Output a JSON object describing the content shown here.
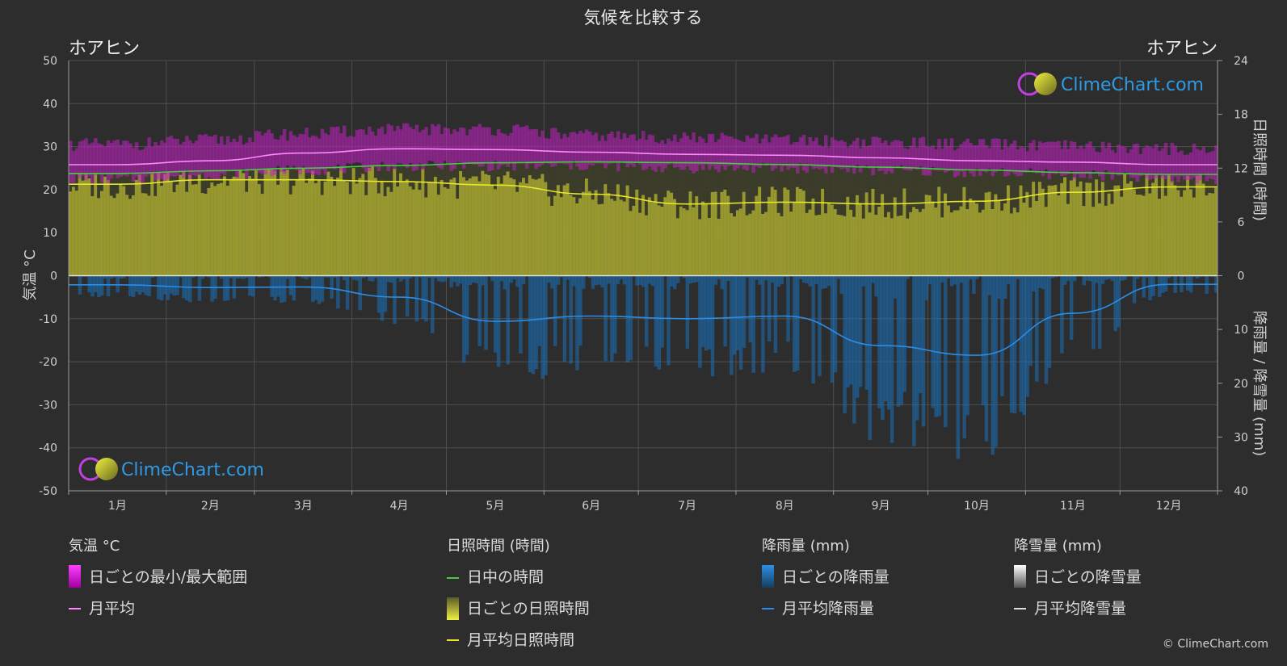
{
  "title": "気候を比較する",
  "location_left": "ホアヒン",
  "location_right": "ホアヒン",
  "axis_left_label": "気温 °C",
  "axis_right_top_label": "日照時間 (時間)",
  "axis_right_bottom_label": "降雨量 / 降雪量 (mm)",
  "brand": "ClimeChart.com",
  "copyright": "© ClimeChart.com",
  "chart_data": {
    "type": "line",
    "months": [
      "1月",
      "2月",
      "3月",
      "4月",
      "5月",
      "6月",
      "7月",
      "8月",
      "9月",
      "10月",
      "11月",
      "12月"
    ],
    "month_days": [
      31,
      28,
      31,
      30,
      31,
      30,
      31,
      31,
      30,
      31,
      30,
      31
    ],
    "temperature_axis": {
      "ylim": [
        -50,
        50
      ],
      "ticks": [
        50,
        40,
        30,
        20,
        10,
        0,
        -10,
        -20,
        -30,
        -40,
        -50
      ]
    },
    "sunshine_axis": {
      "ylim": [
        0,
        24
      ],
      "ticks": [
        24,
        18,
        12,
        6,
        0
      ]
    },
    "precip_axis": {
      "ylim": [
        0,
        40
      ],
      "ticks": [
        0,
        10,
        20,
        30,
        40
      ],
      "inverted": true
    },
    "series": [
      {
        "name": "月平均",
        "kind": "temperature_mean",
        "color": "#ff88ff",
        "values": [
          25.8,
          26.7,
          28.5,
          29.5,
          29.3,
          28.7,
          28.2,
          28.0,
          27.4,
          26.7,
          26.4,
          25.8
        ]
      },
      {
        "name": "日ごとの最小/最大範囲",
        "kind": "temperature_range",
        "color": "#d020d0",
        "min": [
          22.5,
          23.5,
          24.5,
          25.5,
          25.5,
          25.5,
          25.0,
          25.0,
          24.5,
          24.0,
          23.5,
          22.5
        ],
        "max": [
          30.5,
          31.5,
          33.0,
          34.0,
          34.0,
          32.5,
          32.0,
          31.5,
          31.0,
          30.5,
          30.0,
          29.5
        ]
      },
      {
        "name": "日中の時間",
        "kind": "daylight",
        "color": "#44cc44",
        "values": [
          11.4,
          11.7,
          12.0,
          12.3,
          12.6,
          12.7,
          12.6,
          12.4,
          12.1,
          11.8,
          11.5,
          11.3
        ]
      },
      {
        "name": "月平均日照時間",
        "kind": "sunshine_mean",
        "color": "#e6e62a",
        "values": [
          10.2,
          10.7,
          10.7,
          10.5,
          10.1,
          9.1,
          8.0,
          8.2,
          8.0,
          8.3,
          9.3,
          9.9
        ]
      },
      {
        "name": "日ごとの日照時間",
        "kind": "sunshine_daily",
        "color": "#a8a830"
      },
      {
        "name": "月平均降雨量",
        "kind": "rain_mean",
        "color": "#2a8ee8",
        "values": [
          1.7,
          2.2,
          2.1,
          4.0,
          8.5,
          7.5,
          8.0,
          7.5,
          13.0,
          14.8,
          7.0,
          1.6
        ]
      },
      {
        "name": "日ごとの降雨量",
        "kind": "rain_daily",
        "color": "#1a6fb8"
      },
      {
        "name": "日ごとの降雪量",
        "kind": "snow_daily",
        "color": "#cccccc"
      },
      {
        "name": "月平均降雪量",
        "kind": "snow_mean",
        "color": "#dddddd",
        "values": [
          0,
          0,
          0,
          0,
          0,
          0,
          0,
          0,
          0,
          0,
          0,
          0
        ]
      }
    ]
  },
  "legend": {
    "temp": {
      "header": "気温 °C",
      "range": "日ごとの最小/最大範囲",
      "mean": "月平均"
    },
    "sun": {
      "header": "日照時間 (時間)",
      "daylight": "日中の時間",
      "daily": "日ごとの日照時間",
      "mean": "月平均日照時間"
    },
    "rain": {
      "header": "降雨量 (mm)",
      "daily": "日ごとの降雨量",
      "mean": "月平均降雨量"
    },
    "snow": {
      "header": "降雪量 (mm)",
      "daily": "日ごとの降雪量",
      "mean": "月平均降雪量"
    }
  }
}
